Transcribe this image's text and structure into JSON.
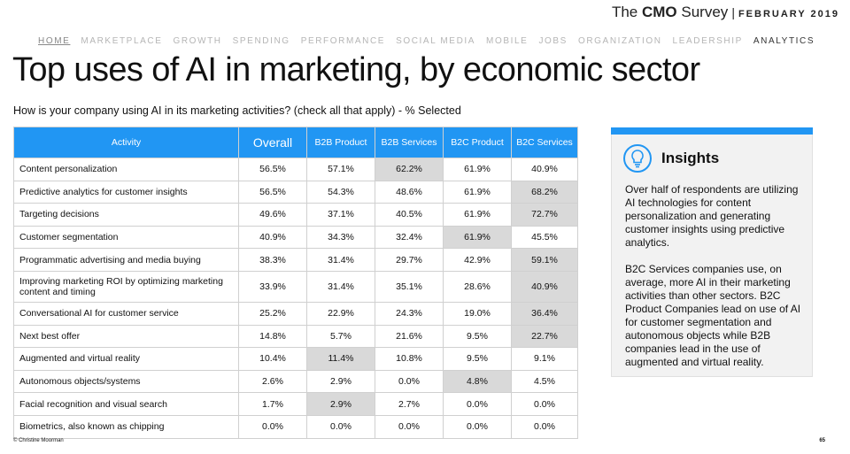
{
  "brand": {
    "prefix": "The",
    "bold": "CMO",
    "suffix": "Survey",
    "separator": "|",
    "date": "FEBRUARY 2019"
  },
  "nav": {
    "items": [
      "HOME",
      "MARKETPLACE",
      "GROWTH",
      "SPENDING",
      "PERFORMANCE",
      "SOCIAL MEDIA",
      "MOBILE",
      "JOBS",
      "ORGANIZATION",
      "LEADERSHIP",
      "ANALYTICS"
    ],
    "underlined": 0,
    "active": 10
  },
  "title": "Top uses of AI in marketing, by economic sector",
  "subtitle": "How is your company using AI in its marketing activities? (check all that apply) - % Selected",
  "table": {
    "columns": [
      "Activity",
      "Overall",
      "B2B Product",
      "B2B Services",
      "B2C Product",
      "B2C Services"
    ],
    "rows": [
      {
        "activity": "Content personalization",
        "values": [
          "56.5%",
          "57.1%",
          "62.2%",
          "61.9%",
          "40.9%"
        ],
        "highlight": 2
      },
      {
        "activity": "Predictive analytics for customer insights",
        "values": [
          "56.5%",
          "54.3%",
          "48.6%",
          "61.9%",
          "68.2%"
        ],
        "highlight": 4
      },
      {
        "activity": "Targeting decisions",
        "values": [
          "49.6%",
          "37.1%",
          "40.5%",
          "61.9%",
          "72.7%"
        ],
        "highlight": 4
      },
      {
        "activity": "Customer segmentation",
        "values": [
          "40.9%",
          "34.3%",
          "32.4%",
          "61.9%",
          "45.5%"
        ],
        "highlight": 3
      },
      {
        "activity": "Programmatic advertising and media buying",
        "values": [
          "38.3%",
          "31.4%",
          "29.7%",
          "42.9%",
          "59.1%"
        ],
        "highlight": 4
      },
      {
        "activity": "Improving marketing ROI by optimizing marketing content and timing",
        "values": [
          "33.9%",
          "31.4%",
          "35.1%",
          "28.6%",
          "40.9%"
        ],
        "highlight": 4
      },
      {
        "activity": "Conversational AI for customer service",
        "values": [
          "25.2%",
          "22.9%",
          "24.3%",
          "19.0%",
          "36.4%"
        ],
        "highlight": 4
      },
      {
        "activity": "Next best offer",
        "values": [
          "14.8%",
          "5.7%",
          "21.6%",
          "9.5%",
          "22.7%"
        ],
        "highlight": 4
      },
      {
        "activity": "Augmented and virtual reality",
        "values": [
          "10.4%",
          "11.4%",
          "10.8%",
          "9.5%",
          "9.1%"
        ],
        "highlight": 1
      },
      {
        "activity": "Autonomous objects/systems",
        "values": [
          "2.6%",
          "2.9%",
          "0.0%",
          "4.8%",
          "4.5%"
        ],
        "highlight": 3
      },
      {
        "activity": "Facial recognition and visual search",
        "values": [
          "1.7%",
          "2.9%",
          "2.7%",
          "0.0%",
          "0.0%"
        ],
        "highlight": 1
      },
      {
        "activity": "Biometrics, also known as chipping",
        "values": [
          "0.0%",
          "0.0%",
          "0.0%",
          "0.0%",
          "0.0%"
        ],
        "highlight": null
      }
    ]
  },
  "insights": {
    "title": "Insights",
    "paragraphs": [
      "Over half of respondents are utilizing AI technologies for content personalization and generating customer insights using predictive analytics.",
      "B2C Services companies use, on average, more AI in their marketing activities than other sectors. B2C Product Companies lead on use of AI for customer segmentation and autonomous objects while B2B companies lead in the use of augmented and virtual reality."
    ]
  },
  "footer": {
    "copyright": "© Christine Moorman",
    "page": "65"
  }
}
